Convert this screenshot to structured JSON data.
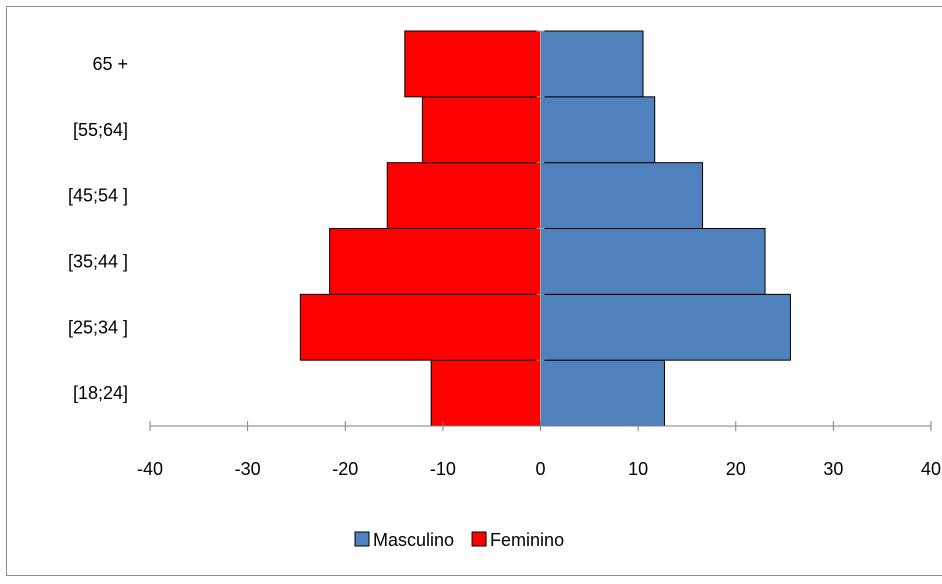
{
  "chart_data": {
    "type": "bar",
    "orientation": "horizontal",
    "stacked": true,
    "categories": [
      "[18;24]",
      "[25;34 ]",
      "[35;44 ]",
      "[45;54 ]",
      "[55;64]",
      "65 +"
    ],
    "series": [
      {
        "name": "Masculino",
        "values": [
          12.7,
          25.6,
          23.0,
          16.6,
          11.7,
          10.5
        ],
        "color": "#4f81bd"
      },
      {
        "name": "Feminino",
        "values": [
          -11.2,
          -24.6,
          -21.6,
          -15.7,
          -12.1,
          -13.9
        ],
        "color": "#ff0000"
      }
    ],
    "xlim": [
      -40,
      40
    ],
    "xticks": [
      "-40",
      "-30",
      "-20",
      "-10",
      "0",
      "10",
      "20",
      "30",
      "40"
    ],
    "grid": false,
    "legend_position": "bottom",
    "title": "",
    "xlabel": "",
    "ylabel": ""
  }
}
